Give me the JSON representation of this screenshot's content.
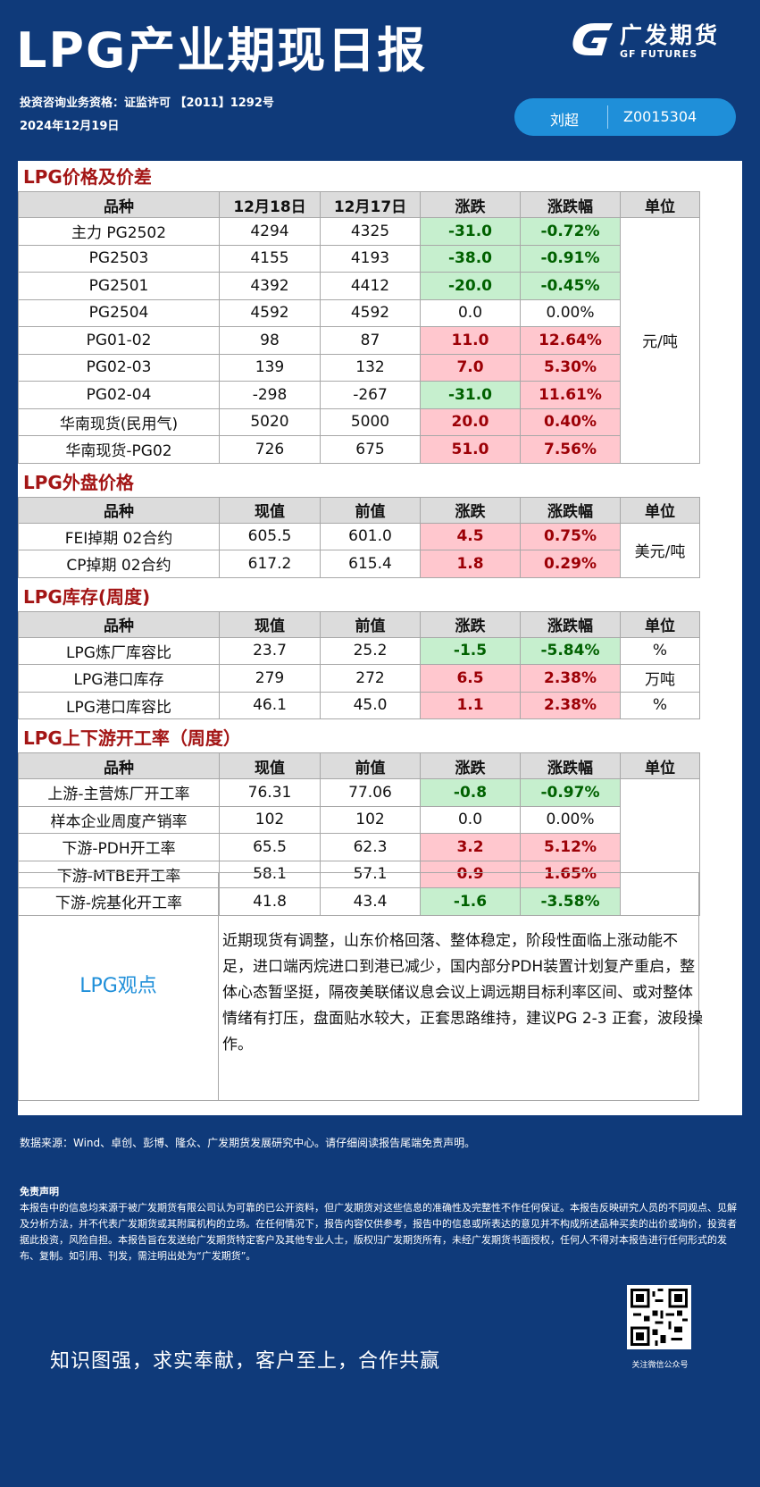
{
  "header": {
    "title": "LPG产业期现日报",
    "logo_cn": "广发期货",
    "logo_en": "GF FUTURES",
    "qualification": "投资咨询业务资格：证监许可 【2011】1292号",
    "date": "2024年12月19日",
    "analyst_name": "刘超",
    "analyst_license": "Z0015304"
  },
  "sections": [
    {
      "title": "LPG价格及价差",
      "headers": [
        "品种",
        "12月18日",
        "12月17日",
        "涨跌",
        "涨跌幅",
        "单位"
      ],
      "unit": "元/吨",
      "rows": [
        {
          "name": "主力 PG2502",
          "v1": "4294",
          "v2": "4325",
          "chg": "-31.0",
          "pct": "-0.72%",
          "dir": "neg"
        },
        {
          "name": "PG2503",
          "v1": "4155",
          "v2": "4193",
          "chg": "-38.0",
          "pct": "-0.91%",
          "dir": "neg"
        },
        {
          "name": "PG2501",
          "v1": "4392",
          "v2": "4412",
          "chg": "-20.0",
          "pct": "-0.45%",
          "dir": "neg"
        },
        {
          "name": "PG2504",
          "v1": "4592",
          "v2": "4592",
          "chg": "0.0",
          "pct": "0.00%",
          "dir": "flat"
        },
        {
          "name": "PG01-02",
          "v1": "98",
          "v2": "87",
          "chg": "11.0",
          "pct": "12.64%",
          "dir": "pos"
        },
        {
          "name": "PG02-03",
          "v1": "139",
          "v2": "132",
          "chg": "7.0",
          "pct": "5.30%",
          "dir": "pos"
        },
        {
          "name": "PG02-04",
          "v1": "-298",
          "v2": "-267",
          "chg": "-31.0",
          "pct": "11.61%",
          "dir": "neg",
          "pct_dir": "pos"
        },
        {
          "name": "华南现货(民用气)",
          "v1": "5020",
          "v2": "5000",
          "chg": "20.0",
          "pct": "0.40%",
          "dir": "pos"
        },
        {
          "name": "华南现货-PG02",
          "v1": "726",
          "v2": "675",
          "chg": "51.0",
          "pct": "7.56%",
          "dir": "pos"
        }
      ]
    },
    {
      "title": "LPG外盘价格",
      "headers": [
        "品种",
        "现值",
        "前值",
        "涨跌",
        "涨跌幅",
        "单位"
      ],
      "unit": "美元/吨",
      "rows": [
        {
          "name": "FEI掉期 02合约",
          "v1": "605.5",
          "v2": "601.0",
          "chg": "4.5",
          "pct": "0.75%",
          "dir": "pos"
        },
        {
          "name": "CP掉期 02合约",
          "v1": "617.2",
          "v2": "615.4",
          "chg": "1.8",
          "pct": "0.29%",
          "dir": "pos"
        }
      ]
    },
    {
      "title": "LPG库存(周度)",
      "headers": [
        "品种",
        "现值",
        "前值",
        "涨跌",
        "涨跌幅",
        "单位"
      ],
      "rows": [
        {
          "name": "LPG炼厂库容比",
          "v1": "23.7",
          "v2": "25.2",
          "chg": "-1.5",
          "pct": "-5.84%",
          "dir": "neg",
          "unit": "%"
        },
        {
          "name": "LPG港口库存",
          "v1": "279",
          "v2": "272",
          "chg": "6.5",
          "pct": "2.38%",
          "dir": "pos",
          "unit": "万吨"
        },
        {
          "name": "LPG港口库容比",
          "v1": "46.1",
          "v2": "45.0",
          "chg": "1.1",
          "pct": "2.38%",
          "dir": "pos",
          "unit": "%"
        }
      ]
    },
    {
      "title": "LPG上下游开工率（周度）",
      "headers": [
        "品种",
        "现值",
        "前值",
        "涨跌",
        "涨跌幅",
        "单位"
      ],
      "unit": "",
      "rows": [
        {
          "name": "上游-主营炼厂开工率",
          "v1": "76.31",
          "v2": "77.06",
          "chg": "-0.8",
          "pct": "-0.97%",
          "dir": "neg"
        },
        {
          "name": "样本企业周度产销率",
          "v1": "102",
          "v2": "102",
          "chg": "0.0",
          "pct": "0.00%",
          "dir": "flat"
        },
        {
          "name": "下游-PDH开工率",
          "v1": "65.5",
          "v2": "62.3",
          "chg": "3.2",
          "pct": "5.12%",
          "dir": "pos"
        },
        {
          "name": "下游-MTBE开工率",
          "v1": "58.1",
          "v2": "57.1",
          "chg": "0.9",
          "pct": "1.65%",
          "dir": "pos"
        },
        {
          "name": "下游-烷基化开工率",
          "v1": "41.8",
          "v2": "43.4",
          "chg": "-1.6",
          "pct": "-3.58%",
          "dir": "neg"
        }
      ]
    }
  ],
  "view": {
    "label": "LPG观点",
    "text": "近期现货有调整，山东价格回落、整体稳定，阶段性面临上涨动能不足，进口端丙烷进口到港已减少，国内部分PDH装置计划复产重启，整体心态暂坚挺，隔夜美联储议息会议上调远期目标利率区间、或对整体情绪有打压，盘面贴水较大，正套思路维持，建议PG 2-3 正套，波段操作。"
  },
  "footer": {
    "source": "数据来源：Wind、卓创、彭博、隆众、广发期货发展研究中心。请仔细阅读报告尾端免责声明。",
    "disclaimer_title": "免责声明",
    "disclaimer": "本报告中的信息均来源于被广发期货有限公司认为可靠的已公开资料，但广发期货对这些信息的准确性及完整性不作任何保证。本报告反映研究人员的不同观点、见解及分析方法，并不代表广发期货或其附属机构的立场。在任何情况下，报告内容仅供参考，报告中的信息或所表达的意见并不构成所述品种买卖的出价或询价，投资者据此投资，风险自担。本报告旨在发送给广发期货特定客户及其他专业人士，版权归广发期货所有，未经广发期货书面授权，任何人不得对本报告进行任何形式的发布、复制。如引用、刊发，需注明出处为“广发期货”。",
    "slogan": "知识图强，求实奉献，客户至上，合作共赢",
    "qr_caption": "关注微信公众号"
  },
  "colors": {
    "background": "#0f3a7a",
    "accent": "#1f8fd9",
    "section_title": "#a31515",
    "up_bg": "#ffc7ce",
    "up_text": "#9c0006",
    "down_bg": "#c6efce",
    "down_text": "#006100"
  }
}
